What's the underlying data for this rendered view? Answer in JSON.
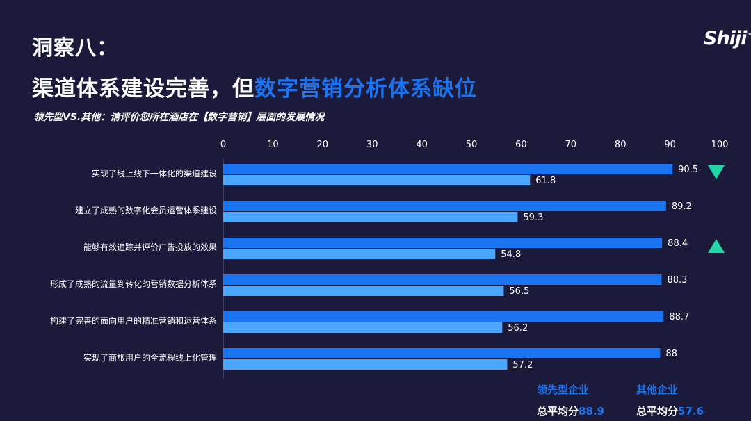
{
  "header": {
    "heading": "洞察八：",
    "title_plain": "渠道体系建设完善，但",
    "title_accent": "数字营销分析体系缺位",
    "subtitle": "领先型VS.其他：请评价您所在酒店在【数字营销】层面的发展情况",
    "logo": "Shiji",
    "logo_mark": "™"
  },
  "colors": {
    "background": "#1b1a3a",
    "leader_bar": "#1a73f0",
    "other_bar": "#4aa6ff",
    "accent_text": "#1a73f0",
    "marker": "#1fd6a6"
  },
  "chart_data": {
    "type": "bar",
    "orientation": "horizontal",
    "xlim": [
      0,
      100
    ],
    "xticks": [
      "0",
      "10",
      "20",
      "30",
      "40",
      "50",
      "60",
      "70",
      "80",
      "90",
      "100"
    ],
    "categories": [
      "实现了线上线下一体化的渠道建设",
      "建立了成熟的数字化会员运营体系建设",
      "能够有效追踪并评价广告投放的效果",
      "形成了成熟的流量到转化的营销数据分析体系",
      "构建了完善的面向用户的精准营销和运营体系",
      "实现了商旅用户的全流程线上化管理"
    ],
    "series": [
      {
        "name": "领先型企业",
        "values": [
          90.5,
          89.2,
          88.4,
          88.3,
          88.7,
          88
        ]
      },
      {
        "name": "其他企业",
        "values": [
          61.8,
          59.3,
          54.8,
          56.5,
          56.2,
          57.2
        ]
      }
    ],
    "value_labels": [
      [
        "90.5",
        "89.2",
        "88.4",
        "88.3",
        "88.7",
        "88"
      ],
      [
        "61.8",
        "59.3",
        "54.8",
        "56.5",
        "56.2",
        "57.2"
      ]
    ],
    "markers": [
      {
        "category_index": 0,
        "shape": "triangle-down-icon"
      },
      {
        "category_index": 2,
        "shape": "triangle-up-icon"
      }
    ]
  },
  "legend": {
    "leader": {
      "name": "领先型企业",
      "avg_label": "总平均分",
      "avg_value": "88.9"
    },
    "other": {
      "name": "其他企业",
      "avg_label": "总平均分",
      "avg_value": "57.6"
    }
  }
}
